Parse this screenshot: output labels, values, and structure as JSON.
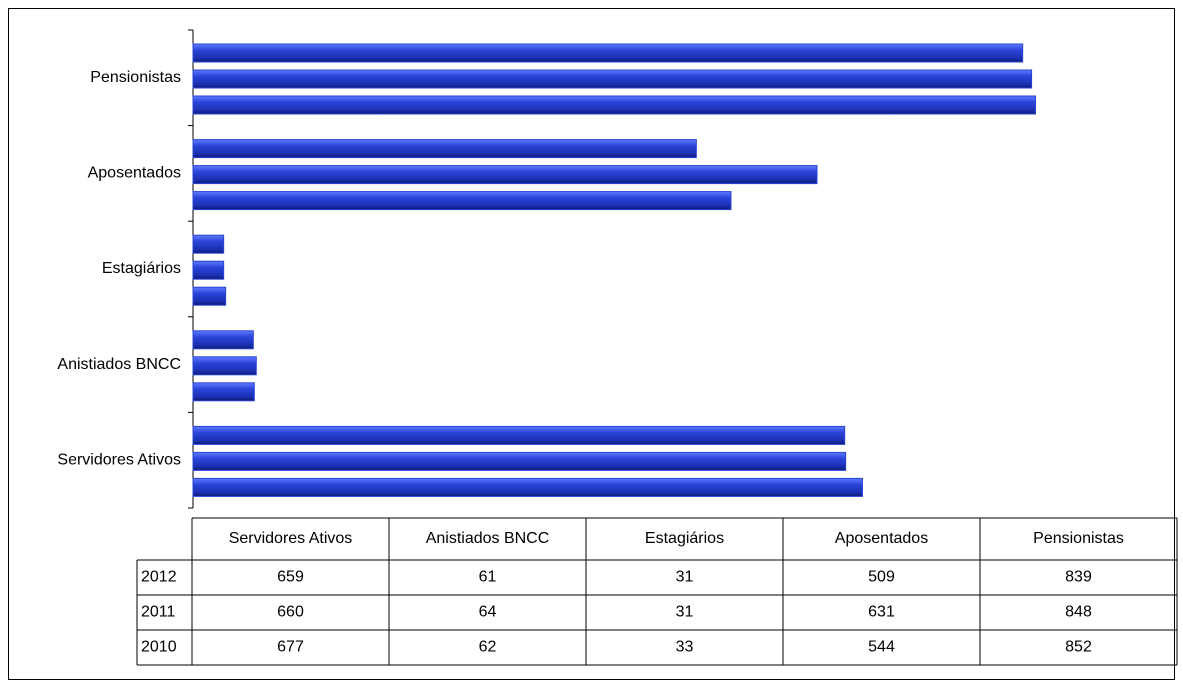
{
  "chart_data": {
    "type": "hbar",
    "categories": [
      "Servidores Ativos",
      "Anistiados BNCC",
      "Estagiários",
      "Aposentados",
      "Pensionistas"
    ],
    "series": [
      {
        "name": "2012",
        "color": "#2a44d8",
        "values": [
          659,
          61,
          31,
          509,
          839
        ]
      },
      {
        "name": "2011",
        "color": "#2a44d8",
        "values": [
          660,
          64,
          31,
          631,
          848
        ]
      },
      {
        "name": "2010",
        "color": "#2a44d8",
        "values": [
          677,
          62,
          33,
          544,
          852
        ]
      }
    ],
    "xlim": [
      0,
      900
    ]
  }
}
